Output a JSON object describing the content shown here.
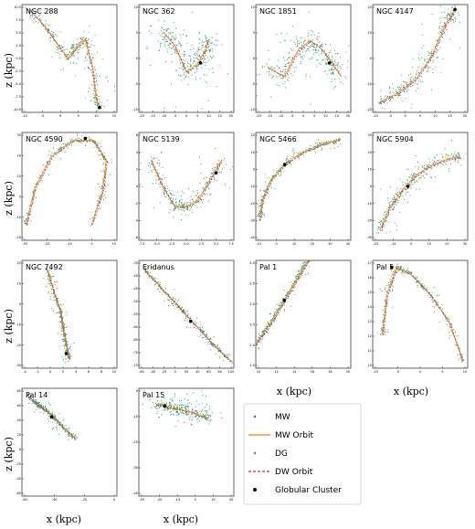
{
  "figure": {
    "ylabel": "z (kpc)",
    "xlabel": "x (kpc)"
  },
  "legend": {
    "items": [
      {
        "label": "MW",
        "kind": "dots",
        "color": "#1f77b4"
      },
      {
        "label": "MW Orbit",
        "kind": "line",
        "color": "#ff7f0e"
      },
      {
        "label": "DG",
        "kind": "dots",
        "color": "#2ca02c"
      },
      {
        "label": "DW Orbit",
        "kind": "dashed",
        "color": "#d62728"
      },
      {
        "label": "Globular Cluster",
        "kind": "dot",
        "color": "#000000"
      }
    ]
  },
  "colors": {
    "mw": "#1f77b4",
    "mw_orbit": "#ff7f0e",
    "dg": "#2ca02c",
    "dw_orbit": "#d62728",
    "cluster": "#000000"
  },
  "chart_data": [
    {
      "type": "scatter",
      "title": "NGC 288",
      "xlim": [
        -12,
        15
      ],
      "ylim": [
        -11,
        11
      ],
      "xticks": [
        "-10",
        "-5",
        "0",
        "5",
        "10",
        "15"
      ],
      "yticks": [
        "10.0",
        "7.5",
        "5.0",
        "2.5",
        "0.0",
        "-2.5",
        "-5.0",
        "-7.5",
        "-10.0"
      ],
      "orbit": [
        [
          -10,
          10
        ],
        [
          -6,
          7
        ],
        [
          -2,
          3
        ],
        [
          1,
          0
        ],
        [
          3,
          2
        ],
        [
          6,
          4
        ],
        [
          8,
          -2
        ],
        [
          9,
          -8
        ],
        [
          10,
          -10
        ]
      ],
      "cluster": [
        10,
        -10
      ],
      "mw_spread": 3,
      "dg_spread": 2
    },
    {
      "type": "scatter",
      "title": "NGC 362",
      "xlim": [
        -20,
        20
      ],
      "ylim": [
        -12,
        12
      ],
      "xticks": [
        "-20",
        "-15",
        "-10",
        "-5",
        "0",
        "5",
        "10",
        "15",
        "20"
      ],
      "yticks": [
        "10",
        "5",
        "0",
        "-5",
        "-10"
      ],
      "orbit": [
        [
          -10,
          6
        ],
        [
          -5,
          3
        ],
        [
          0,
          -3
        ],
        [
          5,
          -1
        ],
        [
          8,
          2
        ],
        [
          9,
          4
        ]
      ],
      "cluster": [
        6,
        -1
      ],
      "mw_spread": 6,
      "dg_spread": 4
    },
    {
      "type": "scatter",
      "title": "NGC 1851",
      "xlim": [
        -20,
        20
      ],
      "ylim": [
        -12,
        12
      ],
      "xticks": [
        "-20",
        "-15",
        "-10",
        "-5",
        "0",
        "5",
        "10",
        "15",
        "20"
      ],
      "yticks": [
        "10",
        "5",
        "0",
        "-5",
        "-10"
      ],
      "orbit": [
        [
          -15,
          -2
        ],
        [
          -8,
          -4
        ],
        [
          -2,
          2
        ],
        [
          3,
          4
        ],
        [
          8,
          2
        ],
        [
          12,
          -1
        ],
        [
          16,
          -4
        ]
      ],
      "cluster": [
        11,
        -1
      ],
      "mw_spread": 5,
      "dg_spread": 4
    },
    {
      "type": "scatter",
      "title": "NGC 4147",
      "xlim": [
        -10,
        20
      ],
      "ylim": [
        -22,
        22
      ],
      "xticks": [
        "-10",
        "-5",
        "0",
        "5",
        "10",
        "15",
        "20"
      ],
      "yticks": [
        "20",
        "10",
        "0",
        "-10",
        "-20"
      ],
      "orbit": [
        [
          -8,
          -18
        ],
        [
          -2,
          -14
        ],
        [
          4,
          -8
        ],
        [
          9,
          2
        ],
        [
          13,
          14
        ],
        [
          16,
          20
        ]
      ],
      "cluster": [
        16,
        20
      ],
      "mw_spread": 2,
      "dg_spread": 3
    },
    {
      "type": "scatter",
      "title": "NGC 4590",
      "xlim": [
        -30,
        15
      ],
      "ylim": [
        -22,
        32
      ],
      "xticks": [
        "-30",
        "-20",
        "-10",
        "0",
        "10"
      ],
      "yticks": [
        "30",
        "20",
        "10",
        "0",
        "-10",
        "-20"
      ],
      "orbit": [
        [
          -28,
          -14
        ],
        [
          -24,
          4
        ],
        [
          -16,
          20
        ],
        [
          -6,
          28
        ],
        [
          4,
          28
        ],
        [
          10,
          18
        ],
        [
          8,
          2
        ],
        [
          3,
          -14
        ]
      ],
      "cluster": [
        0,
        29
      ],
      "mw_spread": 1,
      "dg_spread": 1
    },
    {
      "type": "scatter",
      "title": "NGC 5139",
      "xlim": [
        -8,
        8
      ],
      "ylim": [
        -8,
        8
      ],
      "xticks": [
        "-7.5",
        "-5.0",
        "-2.5",
        "0.0",
        "2.5",
        "5.0",
        "7.5"
      ],
      "yticks": [
        "6",
        "4",
        "2",
        "0",
        "-2",
        "-4",
        "-6"
      ],
      "orbit": [
        [
          -6,
          4
        ],
        [
          -4,
          0
        ],
        [
          -2,
          -3
        ],
        [
          0,
          -3
        ],
        [
          2,
          -2
        ],
        [
          4,
          1
        ],
        [
          6,
          4
        ]
      ],
      "cluster": [
        5,
        2
      ],
      "mw_spread": 3,
      "dg_spread": 2
    },
    {
      "type": "scatter",
      "title": "NGC 5466",
      "xlim": [
        -12,
        44
      ],
      "ylim": [
        -42,
        22
      ],
      "xticks": [
        "-10",
        "0",
        "10",
        "20",
        "30",
        "40"
      ],
      "yticks": [
        "20",
        "10",
        "0",
        "-10",
        "-20",
        "-30",
        "-40"
      ],
      "orbit": [
        [
          -10,
          -30
        ],
        [
          -8,
          -18
        ],
        [
          -3,
          -6
        ],
        [
          5,
          3
        ],
        [
          15,
          10
        ],
        [
          27,
          15
        ],
        [
          38,
          18
        ]
      ],
      "cluster": [
        5,
        3
      ],
      "mw_spread": 1,
      "dg_spread": 1
    },
    {
      "type": "scatter",
      "title": "NGC 5904",
      "xlim": [
        -22,
        32
      ],
      "ylim": [
        -32,
        32
      ],
      "xticks": [
        "-20",
        "-10",
        "0",
        "10",
        "20",
        "30"
      ],
      "yticks": [
        "30",
        "20",
        "10",
        "0",
        "-10",
        "-20",
        "-30"
      ],
      "orbit": [
        [
          -18,
          -26
        ],
        [
          -12,
          -12
        ],
        [
          -5,
          -2
        ],
        [
          2,
          6
        ],
        [
          10,
          12
        ],
        [
          20,
          16
        ],
        [
          28,
          18
        ]
      ],
      "cluster": [
        -2,
        0
      ],
      "mw_spread": 2,
      "dg_spread": 3
    },
    {
      "type": "scatter",
      "title": "NGC 7492",
      "xlim": [
        -5,
        10
      ],
      "ylim": [
        -32,
        27
      ],
      "xticks": [
        "-4",
        "-2",
        "0",
        "2",
        "4",
        "6",
        "8",
        "10"
      ],
      "yticks": [
        "20",
        "10",
        "0",
        "-10",
        "-20",
        "-30"
      ],
      "orbit": [
        [
          -1,
          22
        ],
        [
          0,
          10
        ],
        [
          1,
          0
        ],
        [
          1.5,
          -10
        ],
        [
          2,
          -20
        ],
        [
          2.5,
          -27
        ]
      ],
      "cluster": [
        2,
        -24
      ],
      "mw_spread": 1,
      "dg_spread": 1
    },
    {
      "type": "scatter",
      "title": "Eridanus",
      "xlim": [
        -60,
        105
      ],
      "ylim": [
        -78,
        -32
      ],
      "xticks": [
        "-60",
        "-40",
        "-20",
        "0",
        "20",
        "40",
        "60",
        "80",
        "100"
      ],
      "yticks": [
        "-35",
        "-40",
        "-45",
        "-50",
        "-55",
        "-60",
        "-65",
        "-70",
        "-75"
      ],
      "orbit": [
        [
          -50,
          -36
        ],
        [
          -20,
          -44
        ],
        [
          10,
          -52
        ],
        [
          40,
          -60
        ],
        [
          70,
          -68
        ],
        [
          100,
          -75
        ]
      ],
      "cluster": [
        30,
        -58
      ],
      "mw_spread": 1,
      "dg_spread": 1
    },
    {
      "type": "scatter",
      "title": "Pal 1",
      "xlim": [
        10,
        20
      ],
      "ylim": [
        1.3,
        4.0
      ],
      "xticks": [
        "10",
        "12",
        "14",
        "16",
        "18",
        "20"
      ],
      "yticks": [
        "4.0",
        "3.5",
        "3.0",
        "2.5",
        "2.0",
        "1.5"
      ],
      "orbit": [
        [
          10,
          1.9
        ],
        [
          11.5,
          2.4
        ],
        [
          13,
          3.0
        ],
        [
          14.5,
          3.6
        ],
        [
          15.5,
          4.0
        ]
      ],
      "cluster": [
        13,
        3.0
      ],
      "mw_spread": 1,
      "dg_spread": 1
    },
    {
      "type": "scatter",
      "title": "Pal 5",
      "xlim": [
        -10,
        10
      ],
      "ylim": [
        9.5,
        17.5
      ],
      "xticks": [
        "-10",
        "-5",
        "0",
        "5",
        "10"
      ],
      "yticks": [
        "17",
        "16",
        "15",
        "14",
        "13",
        "12",
        "11",
        "10"
      ],
      "orbit": [
        [
          -8,
          12
        ],
        [
          -7,
          15
        ],
        [
          -5,
          17
        ],
        [
          -2,
          16.5
        ],
        [
          2,
          15
        ],
        [
          6,
          13
        ],
        [
          9,
          10
        ]
      ],
      "cluster": [
        -6,
        17
      ],
      "mw_spread": 1,
      "dg_spread": 1
    },
    {
      "type": "scatter",
      "title": "Pal 14",
      "xlim": [
        -70,
        10
      ],
      "ylim": [
        -65,
        85
      ],
      "xticks": [
        "-60",
        "-40",
        "-20",
        "0"
      ],
      "yticks": [
        "80",
        "60",
        "40",
        "20",
        "0",
        "-20",
        "-40",
        "-60"
      ],
      "orbit": [
        [
          -65,
          75
        ],
        [
          -55,
          60
        ],
        [
          -45,
          48
        ],
        [
          -35,
          30
        ],
        [
          -25,
          15
        ]
      ],
      "cluster": [
        -45,
        45
      ],
      "mw_spread": 1,
      "dg_spread": 1
    },
    {
      "type": "scatter",
      "title": "Pal 15",
      "xlim": [
        -35,
        20
      ],
      "ylim": [
        -45,
        10
      ],
      "xticks": [
        "-30",
        "-20",
        "-10",
        "0",
        "10",
        "20"
      ],
      "yticks": [
        "0",
        "-10",
        "-20",
        "-30",
        "-40"
      ],
      "orbit": [
        [
          -25,
          2
        ],
        [
          -15,
          0
        ],
        [
          -5,
          -2
        ],
        [
          5,
          -5
        ]
      ],
      "cluster": [
        -20,
        1
      ],
      "mw_spread": 3,
      "dg_spread": 2
    }
  ]
}
